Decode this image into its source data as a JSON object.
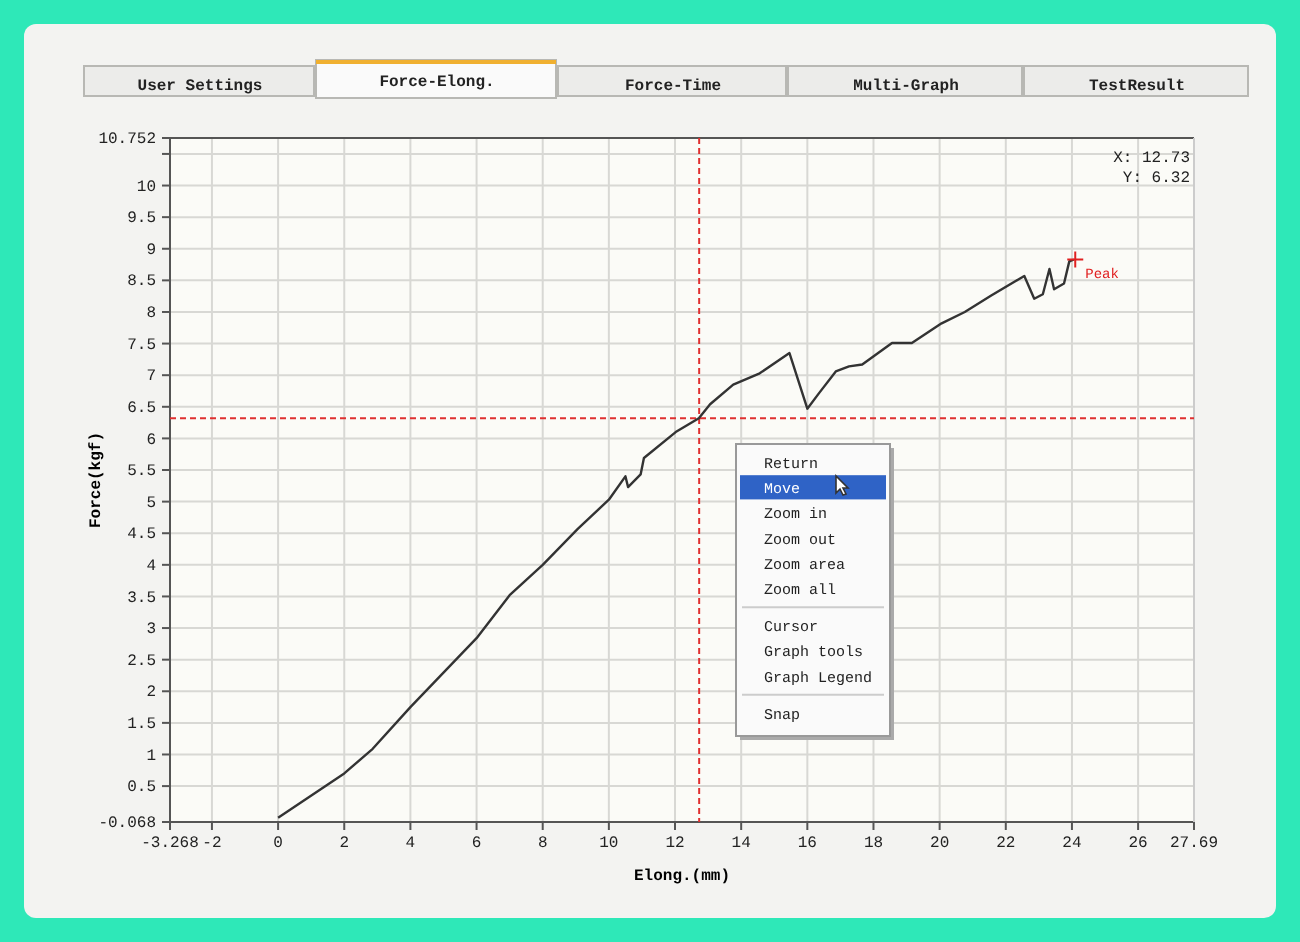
{
  "chart_data": {
    "type": "line",
    "xlabel": "Elong.(mm)",
    "ylabel": "Force(kgf)",
    "xlim": [
      -3.268,
      27.69
    ],
    "ylim": [
      -0.068,
      10.752
    ],
    "xticks": [
      -3.268,
      -2,
      0,
      2,
      4,
      6,
      8,
      10,
      12,
      14,
      16,
      18,
      20,
      22,
      24,
      26,
      27.69
    ],
    "yticks": [
      -0.068,
      0.5,
      1,
      1.5,
      2,
      2.5,
      3,
      3.5,
      4,
      4.5,
      5,
      5.5,
      6,
      6.5,
      7,
      7.5,
      8,
      8.5,
      9,
      9.5,
      10,
      {
        "value": 10.5,
        "label": null
      },
      10.752
    ],
    "grid": true,
    "marker": "none",
    "line_style": "solid",
    "x": [
      0,
      2,
      2.86,
      4,
      6,
      7,
      8,
      9.06,
      10,
      10.5,
      10.58,
      10.96,
      11.06,
      12.02,
      12.72,
      13.06,
      13.76,
      14.56,
      15.46,
      16.0,
      16.36,
      16.86,
      17.26,
      17.66,
      18.56,
      19.16,
      20.06,
      20.76,
      21.56,
      22.56,
      22.86,
      23.12,
      23.32,
      23.46,
      23.76,
      23.92,
      24.06
    ],
    "series": [
      {
        "color": "#333333",
        "values": [
          0,
          0.7,
          1.09,
          1.75,
          2.84,
          3.52,
          4.0,
          4.57,
          5.03,
          5.4,
          5.23,
          5.43,
          5.69,
          6.1,
          6.32,
          6.54,
          6.85,
          7.03,
          7.35,
          6.47,
          6.72,
          7.06,
          7.14,
          7.17,
          7.51,
          7.51,
          7.82,
          8.0,
          8.26,
          8.57,
          8.21,
          8.28,
          8.68,
          8.36,
          8.45,
          8.8,
          8.83
        ]
      }
    ],
    "ref_lines": [
      {
        "axis": "x",
        "value": 12.73,
        "color": "#e03030",
        "line_style": "dashed"
      },
      {
        "axis": "y",
        "value": 6.32,
        "color": "#e03030",
        "line_style": "dashed"
      }
    ],
    "annotations": [
      "User Settings",
      "Force-Elong.",
      "Force-Time",
      "Multi-Graph",
      "TestResult",
      "Return",
      "Move",
      "Zoom in",
      "Zoom out",
      "Zoom area",
      "Zoom all",
      "Cursor",
      "Graph tools",
      "Graph Legend",
      "Snap",
      "X: 12.73",
      "Y: 6.32",
      {
        "text": "Peak",
        "x": 24.1,
        "y": 8.83
      }
    ]
  }
}
